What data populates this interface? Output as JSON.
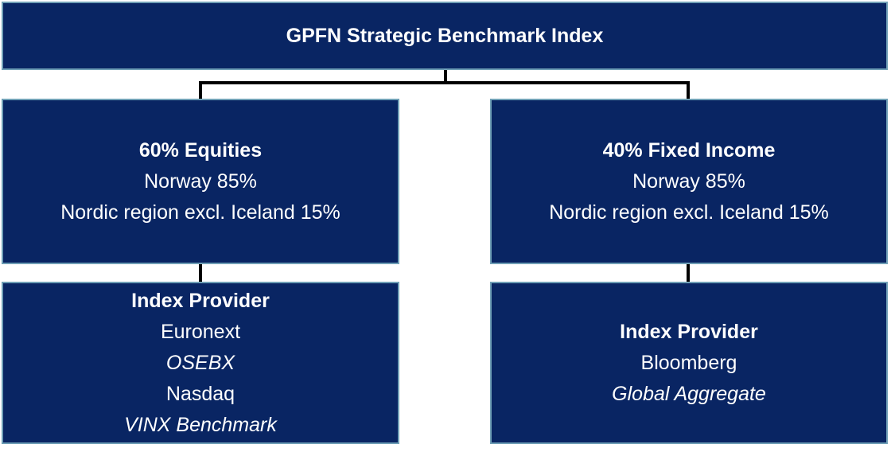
{
  "root": {
    "title": "GPFN Strategic Benchmark Index"
  },
  "branches": [
    {
      "allocation": {
        "heading": "60% Equities",
        "lines": [
          "Norway 85%",
          "Nordic region excl. Iceland 15%"
        ]
      },
      "provider": {
        "heading": "Index Provider",
        "entries": [
          "Euronext",
          "OSEBX",
          "Nasdaq",
          "VINX Benchmark"
        ]
      }
    },
    {
      "allocation": {
        "heading": "40% Fixed Income",
        "lines": [
          "Norway 85%",
          "Nordic region excl. Iceland 15%"
        ]
      },
      "provider": {
        "heading": "Index Provider",
        "entries": [
          "Bloomberg",
          "Global Aggregate"
        ]
      }
    }
  ],
  "colors": {
    "box_fill": "#092563",
    "box_border": "#6f9fb6",
    "connector": "#000000",
    "text": "#ffffff",
    "background": "#ffffff"
  }
}
